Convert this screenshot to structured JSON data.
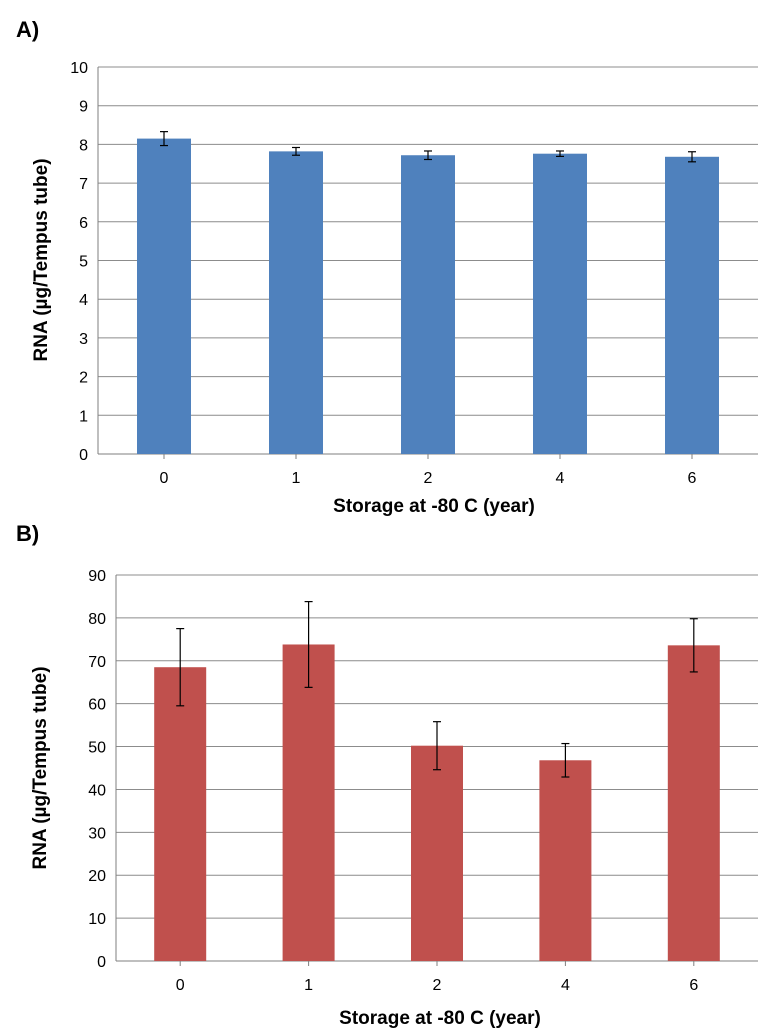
{
  "chart_data": [
    {
      "panel": "A)",
      "type": "bar",
      "categories": [
        "0",
        "1",
        "2",
        "4",
        "6"
      ],
      "values": [
        8.15,
        7.82,
        7.72,
        7.76,
        7.68
      ],
      "errors": [
        0.18,
        0.1,
        0.11,
        0.07,
        0.13
      ],
      "bar_color": "#4f81bd",
      "xlabel": "Storage at -80  C (year)",
      "ylabel": "RNA (µg/Tempus tube)",
      "ylim": [
        0,
        10
      ],
      "yticks": [
        "0",
        "1",
        "2",
        "3",
        "4",
        "5",
        "6",
        "7",
        "8",
        "9",
        "10"
      ],
      "grid": true
    },
    {
      "panel": "B)",
      "type": "bar",
      "categories": [
        "0",
        "1",
        "2",
        "4",
        "6"
      ],
      "values": [
        68.5,
        73.8,
        50.2,
        46.8,
        73.6
      ],
      "errors": [
        9.0,
        10.0,
        5.6,
        3.9,
        6.2
      ],
      "bar_color": "#c0504d",
      "xlabel": "Storage at -80  C (year)",
      "ylabel": "RNA (µg/Tempus tube)",
      "ylim": [
        0,
        90
      ],
      "yticks": [
        "0",
        "10",
        "20",
        "30",
        "40",
        "50",
        "60",
        "70",
        "80",
        "90"
      ],
      "grid": true
    }
  ]
}
